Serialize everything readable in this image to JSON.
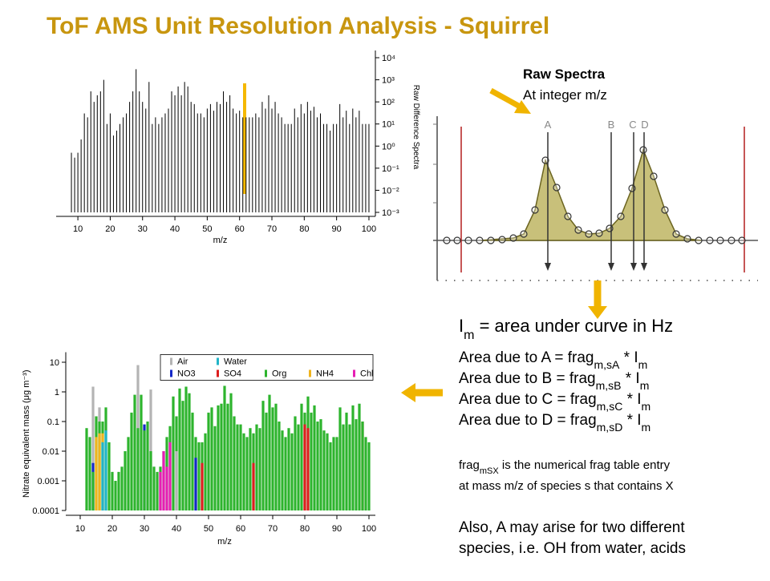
{
  "title": "ToF AMS Unit Resolution Analysis - Squirrel",
  "diagram": {
    "labels": [
      "Raw Spectra",
      "At integer m/z"
    ],
    "peaks": [
      "A",
      "B",
      "C",
      "D"
    ]
  },
  "notes": [
    [
      "I",
      "m",
      " = area under curve in Hz"
    ],
    [
      "Area due to A = frag",
      "m,sA",
      " * I",
      "m"
    ],
    [
      "Area due to B = frag",
      "m,sB",
      " * I",
      "m"
    ],
    [
      "Area due to C = frag",
      "m,sC",
      " * I",
      "m"
    ],
    [
      "Area due to D = frag",
      "m,sD",
      " * I",
      "m"
    ],
    [
      "frag",
      "mSX",
      " is the numerical frag table entry"
    ],
    [
      "at mass m/z of species s that contains X"
    ],
    [
      "Also, A may arise for two different"
    ],
    [
      "species, i.e. OH from water, acids"
    ]
  ],
  "chart_data": [
    {
      "type": "stem",
      "x_label": "m/z",
      "y_label": "Raw Difference Spectra",
      "color": "#000000",
      "y_axis_side": "right",
      "log_y": true,
      "xlim": [
        7,
        101
      ],
      "ylim": [
        0.001,
        10000
      ],
      "xticks": [
        10,
        20,
        30,
        40,
        50,
        60,
        70,
        80,
        90,
        100
      ],
      "yticks": [
        {
          "value": 0.001,
          "label": "10⁻³"
        },
        {
          "value": 0.01,
          "label": "10⁻²"
        },
        {
          "value": 0.1,
          "label": "10⁻¹"
        },
        {
          "value": 1,
          "label": "10⁰"
        },
        {
          "value": 10,
          "label": "10¹"
        },
        {
          "value": 100,
          "label": "10²"
        },
        {
          "value": 1000,
          "label": "10³"
        },
        {
          "value": 10000,
          "label": "10⁴"
        }
      ],
      "x": [
        8,
        9,
        10,
        11,
        12,
        13,
        14,
        15,
        16,
        17,
        18,
        19,
        20,
        21,
        22,
        23,
        24,
        25,
        26,
        27,
        28,
        29,
        30,
        31,
        32,
        33,
        34,
        35,
        36,
        37,
        38,
        39,
        40,
        41,
        42,
        43,
        44,
        45,
        46,
        47,
        48,
        49,
        50,
        51,
        52,
        53,
        54,
        55,
        56,
        57,
        58,
        59,
        60,
        61,
        62,
        63,
        64,
        65,
        66,
        67,
        68,
        69,
        70,
        71,
        72,
        73,
        74,
        75,
        76,
        77,
        78,
        79,
        80,
        81,
        82,
        83,
        84,
        85,
        86,
        87,
        88,
        89,
        90,
        91,
        92,
        93,
        94,
        95,
        96,
        97,
        98,
        99,
        100
      ],
      "values": [
        0.5,
        0.3,
        0.5,
        2,
        30,
        20,
        300,
        100,
        200,
        300,
        1000,
        10,
        30,
        3,
        5,
        10,
        20,
        30,
        100,
        300,
        3000,
        300,
        100,
        50,
        800,
        10,
        20,
        10,
        20,
        30,
        50,
        300,
        200,
        500,
        200,
        800,
        500,
        100,
        80,
        30,
        30,
        20,
        50,
        80,
        40,
        100,
        80,
        300,
        100,
        200,
        50,
        30,
        40,
        20,
        20,
        20,
        20,
        30,
        20,
        100,
        50,
        200,
        50,
        100,
        30,
        20,
        10,
        10,
        10,
        50,
        20,
        80,
        30,
        100,
        40,
        60,
        20,
        30,
        10,
        10,
        5,
        10,
        10,
        80,
        20,
        40,
        10,
        50,
        20,
        40,
        10,
        10,
        10
      ]
    },
    {
      "type": "bar",
      "x_label": "m/z",
      "y_label": "Nitrate equivalent mass (μg m⁻³)",
      "log_y": true,
      "legend": "top",
      "xlim": [
        8,
        102
      ],
      "ylim": [
        0.0001,
        15
      ],
      "xticks": [
        10,
        20,
        30,
        40,
        50,
        60,
        70,
        80,
        90,
        100
      ],
      "yticks": [
        0.0001,
        0.001,
        0.01,
        0.1,
        1,
        10
      ],
      "series": [
        {
          "name": "Air",
          "color": "#b4b4b4",
          "x": [
            14,
            16,
            28,
            32,
            40
          ],
          "values": [
            1.5,
            0.3,
            8,
            1.2,
            0.01
          ]
        },
        {
          "name": "Water",
          "color": "#22b4c8",
          "x": [
            17,
            18
          ],
          "values": [
            0.02,
            0.05
          ]
        },
        {
          "name": "NO3",
          "color": "#1428c8",
          "x": [
            14,
            30,
            46
          ],
          "values": [
            0.004,
            0.08,
            0.006
          ]
        },
        {
          "name": "SO4",
          "color": "#dc1e1e",
          "x": [
            48,
            64,
            80,
            81,
            98
          ],
          "values": [
            0.004,
            0.004,
            0.08,
            0.06,
            0.1
          ]
        },
        {
          "name": "Org",
          "color": "#2db42d",
          "x": [
            12,
            13,
            14,
            15,
            16,
            17,
            18,
            19,
            20,
            21,
            22,
            23,
            24,
            25,
            26,
            27,
            28,
            29,
            30,
            31,
            32,
            33,
            34,
            35,
            36,
            37,
            38,
            39,
            40,
            41,
            42,
            43,
            44,
            45,
            46,
            47,
            48,
            49,
            50,
            51,
            52,
            53,
            54,
            55,
            56,
            57,
            58,
            59,
            60,
            61,
            62,
            63,
            64,
            65,
            66,
            67,
            68,
            69,
            70,
            71,
            72,
            73,
            74,
            75,
            76,
            77,
            78,
            79,
            80,
            81,
            82,
            83,
            84,
            85,
            86,
            87,
            88,
            89,
            90,
            91,
            92,
            93,
            94,
            95,
            96,
            97,
            98,
            99,
            100
          ],
          "values": [
            0.06,
            0.03,
            0.002,
            0.15,
            0.1,
            0.1,
            0.3,
            0.02,
            0.002,
            0.001,
            0.002,
            0.003,
            0.01,
            0.03,
            0.2,
            0.8,
            0.06,
            0.8,
            0.05,
            0.1,
            0.01,
            0.003,
            0.002,
            0.003,
            0.01,
            0.03,
            0.07,
            0.7,
            0.15,
            1.3,
            0.5,
            1.5,
            0.9,
            0.2,
            0.03,
            0.02,
            0.02,
            0.04,
            0.2,
            0.3,
            0.07,
            0.35,
            0.4,
            1.6,
            0.4,
            0.9,
            0.15,
            0.08,
            0.08,
            0.04,
            0.03,
            0.06,
            0.04,
            0.08,
            0.06,
            0.5,
            0.2,
            0.8,
            0.3,
            0.4,
            0.1,
            0.05,
            0.03,
            0.06,
            0.04,
            0.15,
            0.08,
            0.4,
            0.2,
            0.7,
            0.2,
            0.35,
            0.1,
            0.12,
            0.05,
            0.04,
            0.02,
            0.03,
            0.03,
            0.3,
            0.08,
            0.2,
            0.08,
            0.35,
            0.12,
            0.4,
            0.1,
            0.03,
            0.02
          ]
        },
        {
          "name": "NH4",
          "color": "#f0b41e",
          "x": [
            15,
            16,
            17
          ],
          "values": [
            0.03,
            0.04,
            0.04
          ]
        },
        {
          "name": "Chl",
          "color": "#e61eb4",
          "x": [
            35,
            36,
            37,
            38
          ],
          "values": [
            0.002,
            0.01,
            0.003,
            0.02
          ]
        }
      ]
    }
  ]
}
